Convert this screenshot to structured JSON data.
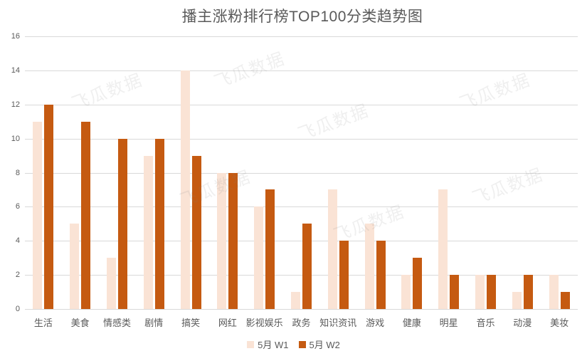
{
  "title": "播主涨粉排行榜TOP100分类趋势图",
  "watermark_text": "飞瓜数据",
  "colors": {
    "series_w1": "#fae3d5",
    "series_w2": "#c55a11",
    "gridline": "#d9d9d9",
    "axis_text": "#595959",
    "title_text": "#595959",
    "background": "#ffffff",
    "watermark": "rgba(128,128,128,0.13)"
  },
  "legend": {
    "items": [
      {
        "label": "5月 W1",
        "color": "#fae3d5"
      },
      {
        "label": "5月 W2",
        "color": "#c55a11"
      }
    ]
  },
  "chart_data": {
    "type": "bar",
    "title": "播主涨粉排行榜TOP100分类趋势图",
    "categories": [
      "生活",
      "美食",
      "情感类",
      "剧情",
      "搞笑",
      "网红",
      "影视娱乐",
      "政务",
      "知识资讯",
      "游戏",
      "健康",
      "明星",
      "音乐",
      "动漫",
      "美妆"
    ],
    "series": [
      {
        "name": "5月 W1",
        "color": "#fae3d5",
        "values": [
          11,
          5,
          3,
          9,
          14,
          8,
          6,
          1,
          7,
          5,
          2,
          7,
          2,
          1,
          2
        ]
      },
      {
        "name": "5月 W2",
        "color": "#c55a11",
        "values": [
          12,
          11,
          10,
          10,
          9,
          8,
          7,
          5,
          4,
          4,
          3,
          2,
          2,
          2,
          1
        ]
      }
    ],
    "ylim": [
      0,
      16
    ],
    "ytick_step": 2,
    "yticks": [
      0,
      2,
      4,
      6,
      8,
      10,
      12,
      14,
      16
    ],
    "grid": true,
    "legend_position": "bottom",
    "xlabel": "",
    "ylabel": ""
  }
}
